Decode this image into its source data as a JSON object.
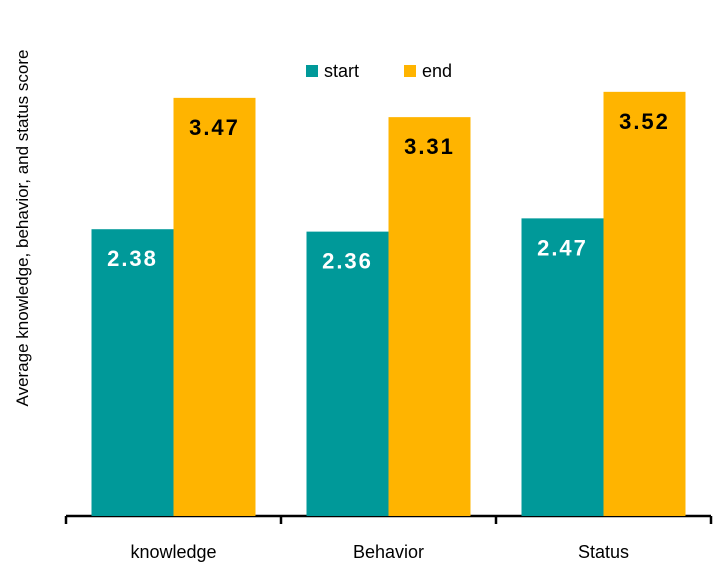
{
  "chart_data": {
    "type": "bar",
    "title": "",
    "xlabel": "",
    "ylabel": "Average knowledge, behavior, and status score",
    "categories": [
      "knowledge",
      "Behavior",
      "Status"
    ],
    "series": [
      {
        "name": "start",
        "values": [
          2.38,
          2.36,
          2.47
        ],
        "value_labels": [
          "2.38",
          "2.36",
          "2.47"
        ],
        "color": "#009999",
        "label_color": "#ffffff"
      },
      {
        "name": "end",
        "values": [
          3.47,
          3.31,
          3.52
        ],
        "value_labels": [
          "3.47",
          "3.31",
          "3.52"
        ],
        "color": "#FFB400",
        "label_color": "#000000"
      }
    ],
    "ylim": [
      0,
      4
    ],
    "grid": false,
    "legend_position": "top-center",
    "y_axis_visible": false
  }
}
